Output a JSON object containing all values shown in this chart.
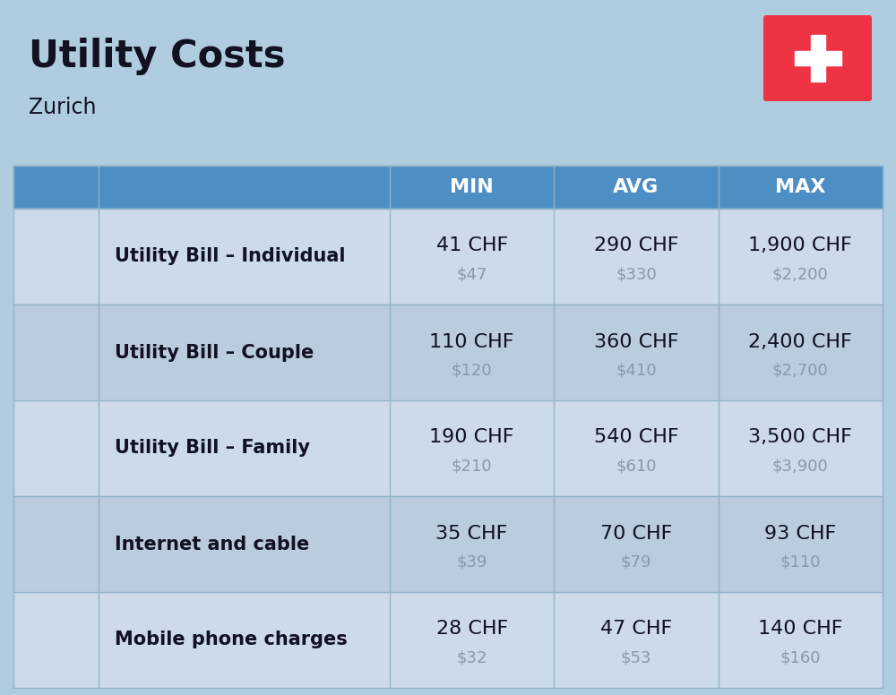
{
  "title": "Utility Costs",
  "subtitle": "Zurich",
  "background_color": "#b0ccdf",
  "header_color": "#4d8fc4",
  "header_text_color": "#ffffff",
  "row_color_light": "#ccdaea",
  "row_color_dark": "#baccde",
  "col_headers": [
    "MIN",
    "AVG",
    "MAX"
  ],
  "rows": [
    {
      "label": "Utility Bill – Individual",
      "min_chf": "41 CHF",
      "min_usd": "$47",
      "avg_chf": "290 CHF",
      "avg_usd": "$330",
      "max_chf": "1,900 CHF",
      "max_usd": "$2,200"
    },
    {
      "label": "Utility Bill – Couple",
      "min_chf": "110 CHF",
      "min_usd": "$120",
      "avg_chf": "360 CHF",
      "avg_usd": "$410",
      "max_chf": "2,400 CHF",
      "max_usd": "$2,700"
    },
    {
      "label": "Utility Bill – Family",
      "min_chf": "190 CHF",
      "min_usd": "$210",
      "avg_chf": "540 CHF",
      "avg_usd": "$610",
      "max_chf": "3,500 CHF",
      "max_usd": "$3,900"
    },
    {
      "label": "Internet and cable",
      "min_chf": "35 CHF",
      "min_usd": "$39",
      "avg_chf": "70 CHF",
      "avg_usd": "$79",
      "max_chf": "93 CHF",
      "max_usd": "$110"
    },
    {
      "label": "Mobile phone charges",
      "min_chf": "28 CHF",
      "min_usd": "$32",
      "avg_chf": "47 CHF",
      "avg_usd": "$53",
      "max_chf": "140 CHF",
      "max_usd": "$160"
    }
  ],
  "title_fontsize": 30,
  "subtitle_fontsize": 17,
  "header_fontsize": 16,
  "label_fontsize": 15,
  "value_fontsize": 16,
  "usd_fontsize": 13,
  "flag_color": "#ee3344",
  "flag_cross_color": "#ffffff",
  "cell_text_color": "#111122",
  "usd_text_color": "#8899aa",
  "line_color": "#92b2c8"
}
